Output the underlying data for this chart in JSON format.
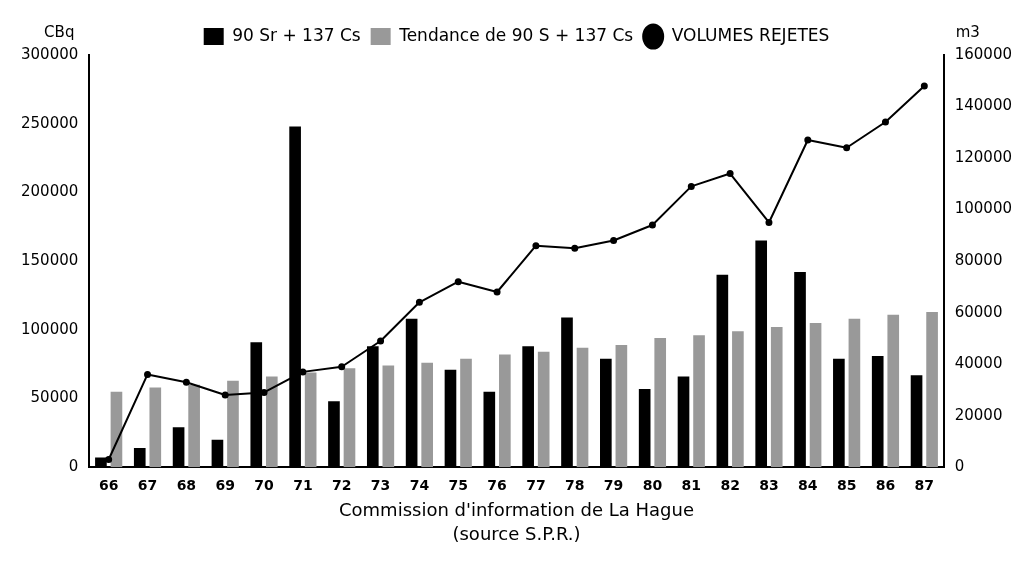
{
  "chart_data": {
    "type": "bar",
    "ylabel": "CBq",
    "y2label": "m3",
    "categories": [
      "66",
      "67",
      "68",
      "69",
      "70",
      "71",
      "72",
      "73",
      "74",
      "75",
      "76",
      "77",
      "78",
      "79",
      "80",
      "81",
      "82",
      "83",
      "84",
      "85",
      "86",
      "87"
    ],
    "series": [
      {
        "name": "90 Sr + 137 Cs",
        "color": "#000000",
        "values": [
          7000,
          14000,
          29000,
          20000,
          91000,
          248000,
          48000,
          88000,
          108000,
          71000,
          55000,
          88000,
          109000,
          79000,
          57000,
          66000,
          140000,
          165000,
          142000,
          79000,
          81000,
          67000
        ]
      },
      {
        "name": "Tendance de 90 S + 137 Cs",
        "color": "#999999",
        "values": [
          55000,
          58000,
          60000,
          63000,
          66000,
          69000,
          72000,
          74000,
          76000,
          79000,
          82000,
          84000,
          87000,
          89000,
          94000,
          96000,
          99000,
          102000,
          105000,
          108000,
          111000,
          113000
        ]
      },
      {
        "name": "VOLUMES REJETES",
        "type": "line",
        "axis": "y2",
        "color": "#000000",
        "marker": "circle",
        "values": [
          3000,
          36000,
          33000,
          28000,
          29000,
          37000,
          39000,
          49000,
          64000,
          72000,
          68000,
          86000,
          85000,
          88000,
          94000,
          109000,
          114000,
          95000,
          127000,
          124000,
          134000,
          148000
        ]
      }
    ],
    "ylim": [
      0,
      300000
    ],
    "yticks": [
      0,
      50000,
      100000,
      150000,
      200000,
      250000,
      300000
    ],
    "y2lim": [
      0,
      160000
    ],
    "y2ticks": [
      0,
      20000,
      40000,
      60000,
      80000,
      100000,
      120000,
      140000,
      160000
    ],
    "grid": false,
    "legend": "top",
    "annotations": [
      "Commission d'information de La Hague",
      "(source S.P.R.)"
    ]
  }
}
